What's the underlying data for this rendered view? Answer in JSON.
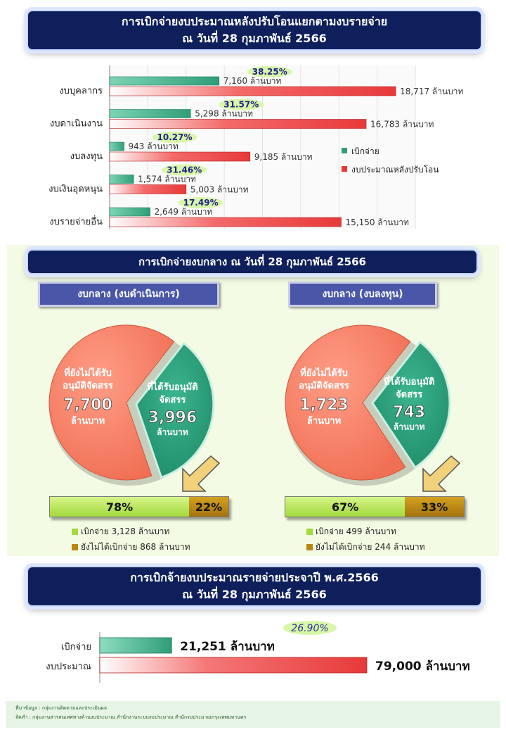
{
  "top_banner": {
    "line1": "การเบิกจ่ายงบประมาณหลังปรับโอนแยกตามงบรายจ่าย",
    "line2": "ณ วันที่ 28 กุมภาพันธ์ 2566"
  },
  "mid_banner": {
    "title": "การเบิกจ่ายงบกลาง ณ วันที่ 28 กุมภาพันธ์ 2566"
  },
  "bottom_banner": {
    "line1": "การเบิกจ้ายงบประมาณรายจ่ายประจาปี พ.ศ.2566",
    "line2": "ณ วันที่ 28 กุมภาพันธ์ 2566"
  },
  "colors": {
    "disbursed": "#2e9e78",
    "budget": "#e8393a",
    "navy": "#0e1f5c"
  },
  "chart_data": [
    {
      "type": "bar",
      "orientation": "horizontal",
      "categories": [
        "งบบุคลากร",
        "งบดาเนินงาน",
        "งบลงทุน",
        "งบเงินอุดหนุน",
        "งบรายจ่ายอื่น"
      ],
      "series": [
        {
          "name": "เบิกจ่าย",
          "values": [
            7160,
            5298,
            943,
            1574,
            2649
          ],
          "value_labels": [
            "7,160 ล้านบาท",
            "5,298 ล้านบาท",
            "943 ล้านบาท",
            "1,574 ล้านบาท",
            "2,649 ล้านบาท"
          ]
        },
        {
          "name": "งบประมาณหลังปรับโอน",
          "values": [
            18717,
            16783,
            9185,
            5003,
            15150
          ],
          "value_labels": [
            "18,717 ล้านบาท",
            "16,783 ล้านบาท",
            "9,185 ล้านบาท",
            "5,003 ล้านบาท",
            "15,150 ล้านบาท"
          ]
        }
      ],
      "percent_labels": [
        "38.25%",
        "31.57%",
        "10.27%",
        "31.46%",
        "17.49%"
      ],
      "xlim": [
        0,
        20000
      ],
      "grid": true,
      "legend_position": "right"
    },
    {
      "type": "pie",
      "title": "งบกลาง (งบดำเนินการ)",
      "slices": [
        {
          "label": "ที่ยังไม่ได้รับ อนุมัติจัดสรร",
          "value": 7700,
          "value_text": "7,700",
          "unit": "ล้านบาท"
        },
        {
          "label": "ที่ได้รับอนุมัติ จัดสรร",
          "value": 3996,
          "value_text": "3,996",
          "unit": "ล้านบาท"
        }
      ],
      "progress": {
        "done_pct": 78,
        "left_pct": 22,
        "done_label": "78%",
        "left_label": "22%"
      },
      "legend": [
        "เบิกจ่าย 3,128 ล้านบาท",
        "ยังไม่ได้เบิกจ่าย 868 ล้านบาท"
      ]
    },
    {
      "type": "pie",
      "title": "งบกลาง (งบลงทุน)",
      "slices": [
        {
          "label": "ที่ยังไม่ได้รับ อนุมัติจัดสรร",
          "value": 1723,
          "value_text": "1,723",
          "unit": "ล้านบาท"
        },
        {
          "label": "ที่ได้รับอนุมัติ จัดสรร",
          "value": 743,
          "value_text": "743",
          "unit": "ล้านบาท"
        }
      ],
      "progress": {
        "done_pct": 67,
        "left_pct": 33,
        "done_label": "67%",
        "left_label": "33%"
      },
      "legend": [
        "เบิกจ่าย 499 ล้านบาท",
        "ยังไม่ได้เบิกจ่าย 244 ล้านบาท"
      ]
    },
    {
      "type": "bar",
      "orientation": "horizontal",
      "categories": [
        "เบิกจ่าย",
        "งบประมาณ"
      ],
      "values": [
        21251,
        79000
      ],
      "value_labels": [
        "21,251 ล้านบาท",
        "79,000 ล้านบาท"
      ],
      "percent_label": "26.90%",
      "xlim": [
        0,
        79000
      ]
    }
  ],
  "footer": {
    "line1": "ที่มาข้อมูล : กลุ่มงานติดตามและประเมินผล",
    "line2": "จัดทำ : กลุ่มงานสารสนเทศทางด้านงบประมาณ สำนักงานระบบงบประมาณ สำนักงบประมาณกรุงเทพมหานคร"
  }
}
